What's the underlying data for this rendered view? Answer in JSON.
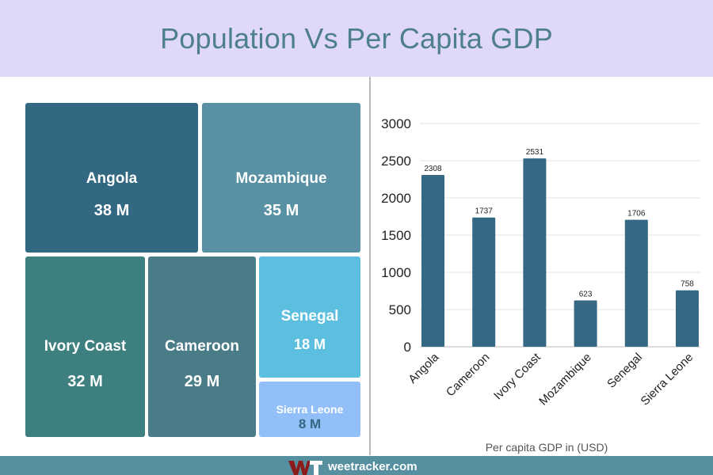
{
  "header": {
    "title": "Population Vs Per Capita GDP"
  },
  "footer": {
    "site": "weetracker.com",
    "logo_text": "WT"
  },
  "colors": {
    "header_bg": "#dfd8f6",
    "title": "#4e7f8d",
    "bar": "#346884",
    "footer_bg": "#568fa0"
  },
  "chart_data": [
    {
      "type": "treemap",
      "title": "Population",
      "items": [
        {
          "label": "Angola",
          "value": 38,
          "value_label": "38 M",
          "color": "#336882"
        },
        {
          "label": "Mozambique",
          "value": 35,
          "value_label": "35 M",
          "color": "#5791a3"
        },
        {
          "label": "Ivory Coast",
          "value": 32,
          "value_label": "32 M",
          "color": "#3e7f80"
        },
        {
          "label": "Cameroon",
          "value": 29,
          "value_label": "29 M",
          "color": "#4a7c88"
        },
        {
          "label": "Senegal",
          "value": 18,
          "value_label": "18 M",
          "color": "#5cbfe0"
        },
        {
          "label": "Sierra Leone",
          "value": 8,
          "value_label": "8 M",
          "color": "#93bff9"
        }
      ]
    },
    {
      "type": "bar",
      "categories": [
        "Angola",
        "Cameroon",
        "Ivory Coast",
        "Mozambique",
        "Senegal",
        "Sierra Leone"
      ],
      "values": [
        2308,
        1737,
        2531,
        623,
        1706,
        758
      ],
      "data_labels": [
        "2308",
        "1737",
        "2531",
        "623",
        "1706",
        "758"
      ],
      "xlabel": "Per capita GDP in (USD)",
      "ylabel": "",
      "ylim": [
        0,
        3000
      ],
      "yticks": [
        "0",
        "500",
        "1000",
        "1500",
        "2000",
        "2500",
        "3000"
      ],
      "ytick_values": [
        0,
        500,
        1000,
        1500,
        2000,
        2500,
        3000
      ],
      "grid": true
    }
  ]
}
